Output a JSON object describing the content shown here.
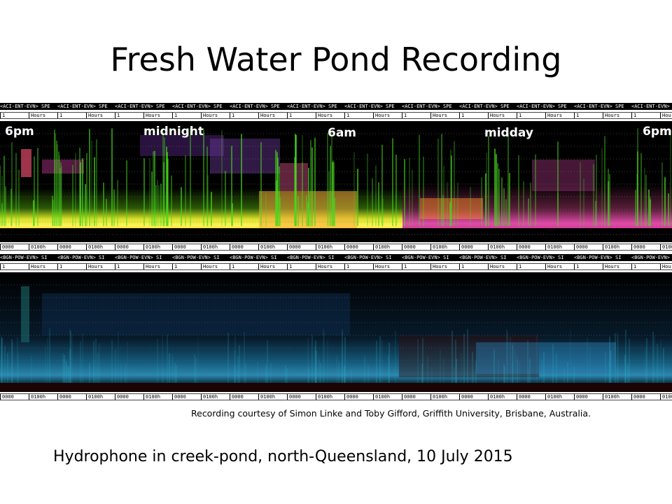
{
  "slide": {
    "title": "Fresh Water Pond Recording",
    "credit": "Recording courtesy of Simon Linke and Toby Gifford, Griffith University, Brisbane, Australia.",
    "caption": "Hydrophone in creek-pond, north-Queensland, 10 July 2015"
  },
  "top_panel": {
    "header_text": "<ACI-ENT-EVN> SPE",
    "hours_label": "Hours",
    "hours_num": "1",
    "time_labels": [
      "6pm",
      "midnight",
      "6am",
      "midday",
      "6pm"
    ],
    "tick_a": "0000",
    "tick_b": "0100h"
  },
  "bottom_panel": {
    "header_text": "<BGN-POW-EVN> SI",
    "hours_label": "Hours",
    "hours_num": "1",
    "tick_a": "0000",
    "tick_b": "0100h"
  },
  "colors": {
    "top_primary": "#f5f03c",
    "top_accent_green": "#4cd21e",
    "top_accent_pink": "#e84ca8",
    "bottom_primary": "#1f6e9e",
    "bottom_accent": "#2bc3c0"
  }
}
